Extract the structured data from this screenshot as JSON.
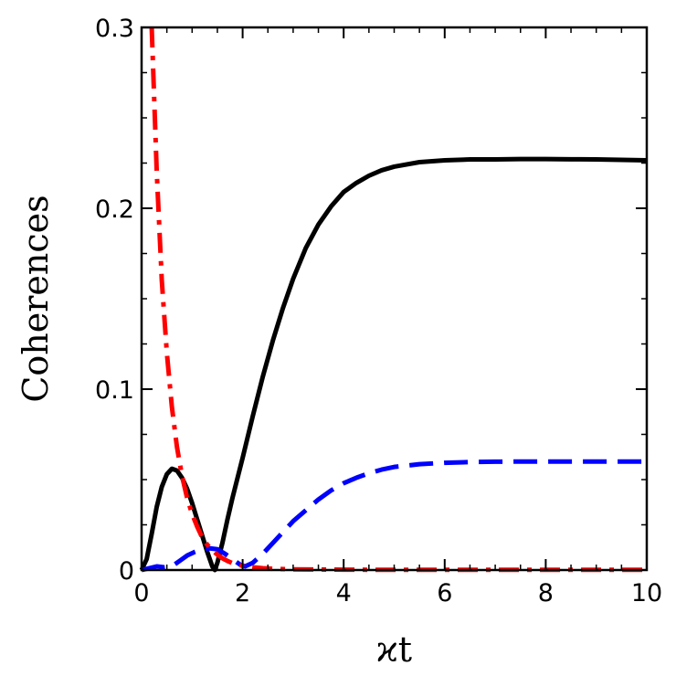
{
  "chart_data": {
    "type": "line",
    "xlabel": "ϰt",
    "ylabel": "Coherences",
    "xlim": [
      0,
      10
    ],
    "ylim": [
      0,
      0.3
    ],
    "x_ticks": [
      0,
      2,
      4,
      6,
      8,
      10
    ],
    "x_tick_labels": [
      "0",
      "2",
      "4",
      "6",
      "8",
      "10"
    ],
    "y_ticks": [
      0,
      0.1,
      0.2,
      0.3
    ],
    "y_tick_labels": [
      "0",
      "0.1",
      "0.2",
      "0.3"
    ],
    "grid": false,
    "legend": "none",
    "series": [
      {
        "color": "#000000",
        "line_style": "solid",
        "x": [
          0,
          0.1,
          0.2,
          0.3,
          0.4,
          0.5,
          0.6,
          0.7,
          0.8,
          0.9,
          1.0,
          1.1,
          1.2,
          1.3,
          1.4,
          1.45,
          1.5,
          1.6,
          1.7,
          1.8,
          2.0,
          2.2,
          2.4,
          2.6,
          2.8,
          3.0,
          3.25,
          3.5,
          3.75,
          4.0,
          4.25,
          4.5,
          4.75,
          5.0,
          5.5,
          6.0,
          6.5,
          7.0,
          7.5,
          8.0,
          8.5,
          9.0,
          9.5,
          10.0
        ],
        "y": [
          0,
          0.006,
          0.02,
          0.035,
          0.046,
          0.053,
          0.056,
          0.055,
          0.051,
          0.045,
          0.037,
          0.028,
          0.019,
          0.01,
          0.002,
          0.0,
          0.004,
          0.015,
          0.028,
          0.04,
          0.062,
          0.085,
          0.107,
          0.127,
          0.145,
          0.161,
          0.178,
          0.191,
          0.201,
          0.209,
          0.214,
          0.218,
          0.221,
          0.223,
          0.2255,
          0.2265,
          0.227,
          0.227,
          0.2272,
          0.2272,
          0.2271,
          0.227,
          0.2268,
          0.2265
        ]
      },
      {
        "color": "#0000ff",
        "line_style": "dashed",
        "x": [
          0,
          0.15,
          0.3,
          0.45,
          0.6,
          0.75,
          0.9,
          1.05,
          1.2,
          1.35,
          1.5,
          1.65,
          1.8,
          1.95,
          2.05,
          2.2,
          2.4,
          2.6,
          2.8,
          3.0,
          3.25,
          3.5,
          3.75,
          4.0,
          4.25,
          4.5,
          4.75,
          5.0,
          5.5,
          6.0,
          6.5,
          7.0,
          7.5,
          8.0,
          8.5,
          9.0,
          9.5,
          10.0
        ],
        "y": [
          0,
          0.001,
          0.002,
          0.0015,
          0.002,
          0.005,
          0.008,
          0.01,
          0.0115,
          0.012,
          0.0115,
          0.009,
          0.006,
          0.003,
          0.002,
          0.004,
          0.009,
          0.015,
          0.021,
          0.027,
          0.033,
          0.039,
          0.044,
          0.048,
          0.051,
          0.0535,
          0.0555,
          0.057,
          0.0585,
          0.0593,
          0.0597,
          0.0599,
          0.06,
          0.06,
          0.06,
          0.06,
          0.06,
          0.06
        ]
      },
      {
        "color": "#ff0000",
        "line_style": "dash-dot",
        "x": [
          0.2,
          0.25,
          0.3,
          0.35,
          0.4,
          0.5,
          0.6,
          0.7,
          0.8,
          0.9,
          1.0,
          1.1,
          1.2,
          1.3,
          1.4,
          1.5,
          1.6,
          1.7,
          1.8,
          1.9,
          2.0,
          2.2,
          2.4,
          2.6,
          3.0,
          4.0,
          5.0,
          6.0,
          7.0,
          8.0,
          9.0,
          10.0
        ],
        "y": [
          0.3,
          0.26,
          0.22,
          0.19,
          0.16,
          0.12,
          0.09,
          0.068,
          0.052,
          0.04,
          0.031,
          0.024,
          0.018,
          0.014,
          0.011,
          0.0085,
          0.0065,
          0.005,
          0.0038,
          0.003,
          0.0023,
          0.0015,
          0.001,
          0.0007,
          0.0004,
          0.0002,
          0.0001,
          0.0001,
          0.0001,
          0.0001,
          0.0001,
          0.0001
        ]
      }
    ]
  }
}
